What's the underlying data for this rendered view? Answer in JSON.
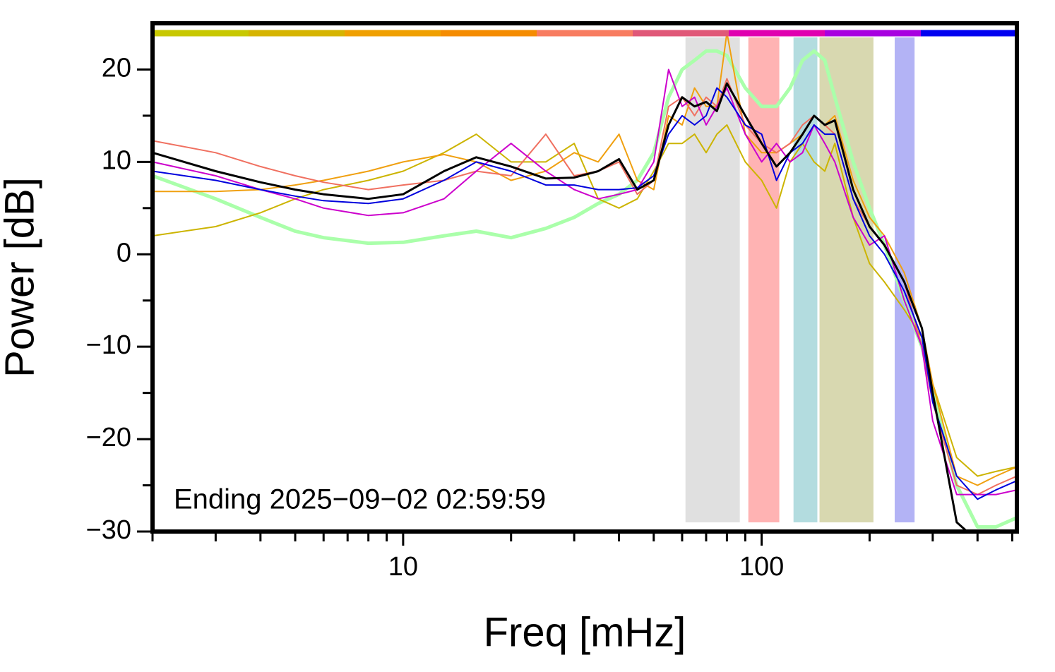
{
  "chart_data": {
    "type": "line",
    "xscale": "log",
    "xlabel": "Freq [mHz]",
    "ylabel": "Power [dB]",
    "annotation": "Ending 2025−09−02 02:59:59",
    "xlim": [
      2,
      515
    ],
    "ylim": [
      -30,
      25
    ],
    "xticks": [
      10,
      100
    ],
    "xminor_ticks": [
      2,
      3,
      4,
      5,
      6,
      7,
      8,
      9,
      20,
      30,
      40,
      50,
      60,
      70,
      80,
      90,
      200,
      300,
      400,
      500
    ],
    "yticks": [
      {
        "value": -30,
        "label": "−30"
      },
      {
        "value": -20,
        "label": "−20"
      },
      {
        "value": -10,
        "label": "−10"
      },
      0,
      10,
      20
    ],
    "yminor_ticks": [
      -25,
      -15,
      -5,
      5,
      15
    ],
    "shaded_ranges": [
      {
        "x": [
          61.3,
          86.9
        ],
        "color": "#e0e0e0"
      },
      {
        "x": [
          91.8,
          112
        ],
        "color": "#ffb3b3"
      },
      {
        "x": [
          122.7,
          143
        ],
        "color": "#b3dcdf"
      },
      {
        "x": [
          145,
          205
        ],
        "color": "#d8d8b0"
      },
      {
        "x": [
          235,
          267
        ],
        "color": "#b3b3f5"
      }
    ],
    "x": [
      2,
      3,
      4,
      5,
      6,
      8,
      10,
      13,
      16,
      20,
      25,
      30,
      35,
      40,
      45,
      50,
      55,
      60,
      65,
      70,
      75,
      80,
      90,
      100,
      110,
      120,
      130,
      140,
      150,
      160,
      180,
      200,
      220,
      250,
      280,
      300,
      350,
      400,
      450,
      515
    ],
    "series": [
      {
        "color": "#aaffaa",
        "width": 5,
        "values": [
          8.5,
          6,
          4,
          2.5,
          1.8,
          1.2,
          1.3,
          2,
          2.5,
          1.8,
          2.8,
          4,
          5.5,
          6.5,
          8,
          11,
          17,
          20,
          21,
          22,
          22,
          21.5,
          18,
          16,
          16,
          18,
          21,
          22,
          21,
          17,
          10,
          5,
          1,
          -5,
          -10,
          -15,
          -25,
          -29.5,
          -29.5,
          -28.5
        ]
      },
      {
        "color": "#ccb400",
        "width": 2,
        "values": [
          2,
          3,
          4.5,
          6,
          7,
          8,
          9,
          11,
          13,
          10,
          10,
          12,
          6,
          5,
          6,
          9,
          12,
          12,
          13,
          11,
          13,
          14,
          10,
          8,
          5,
          10,
          12,
          10,
          9,
          12,
          4,
          -1,
          -3,
          -6,
          -9,
          -14,
          -22,
          -24,
          -23.5,
          -23
        ]
      },
      {
        "color": "#f0a010",
        "width": 2,
        "values": [
          6.8,
          6.8,
          7,
          7.5,
          8,
          9,
          10,
          10.8,
          10,
          8,
          9,
          11,
          10,
          13,
          8,
          7,
          15,
          14,
          18,
          16,
          16,
          24,
          13,
          11,
          11,
          12,
          13,
          15,
          14,
          15,
          8,
          4,
          2,
          -2,
          -8,
          -14,
          -24,
          -25,
          -24,
          -23
        ]
      },
      {
        "color": "#f07060",
        "width": 2,
        "values": [
          12.3,
          11,
          9.5,
          8.5,
          7.8,
          7,
          7.5,
          8,
          9,
          8.5,
          13,
          8.5,
          9,
          10,
          6.5,
          8,
          16,
          17,
          15,
          17,
          16,
          19,
          14,
          12,
          11,
          12,
          14,
          15,
          14,
          13,
          6,
          3,
          1,
          -3,
          -10,
          -16,
          -25,
          -26,
          -25,
          -24
        ]
      },
      {
        "color": "#cc00cc",
        "width": 2,
        "values": [
          10,
          8.5,
          7,
          6,
          5,
          4.2,
          4.5,
          6,
          9,
          12,
          9,
          7,
          6,
          6.5,
          7,
          10,
          20,
          16,
          17,
          14,
          16,
          18,
          13,
          10,
          12,
          10,
          11,
          14,
          12,
          10,
          4,
          1,
          2,
          -5,
          -10,
          -18,
          -26,
          -26,
          -26,
          -25.5
        ]
      },
      {
        "color": "#0000dd",
        "width": 2,
        "values": [
          9,
          8,
          7,
          6.3,
          5.8,
          5.5,
          6,
          8,
          10,
          9,
          7.5,
          7.5,
          7,
          7,
          7.2,
          8.5,
          13,
          15,
          14,
          15,
          18,
          17,
          14,
          13,
          8,
          11,
          12,
          14,
          13,
          13,
          6,
          2,
          0,
          -4,
          -9,
          -16,
          -24,
          -26.5,
          -25.5,
          -24.5
        ]
      },
      {
        "color": "#000000",
        "width": 3,
        "values": [
          11,
          9,
          7.8,
          7,
          6.5,
          6,
          6.5,
          9,
          10.5,
          9.5,
          8.2,
          8.3,
          9,
          10.3,
          7,
          8,
          14,
          17,
          16,
          16.5,
          15.5,
          18.5,
          15,
          12,
          9.5,
          11,
          13,
          15,
          14,
          14.5,
          7,
          3,
          1,
          -3,
          -8,
          -15,
          -29,
          -31,
          -31,
          -31
        ]
      }
    ]
  }
}
